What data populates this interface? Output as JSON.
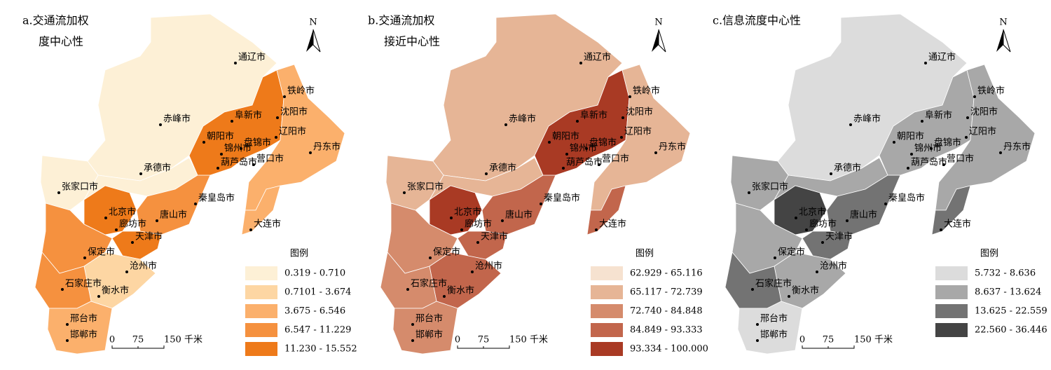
{
  "panels": [
    {
      "title_lines": [
        "a.交通流加权",
        "度中心性"
      ],
      "north": "N",
      "cities": [
        "通辽市",
        "铁岭市",
        "赤峰市",
        "阜新市",
        "沈阳市",
        "朝阳市",
        "辽阳市",
        "盘锦市",
        "锦州市",
        "丹东市",
        "营口市",
        "葫芦岛市",
        "承德市",
        "张家口市",
        "秦皇岛市",
        "北京市",
        "唐山市",
        "廊坊市",
        "大连市",
        "天津市",
        "保定市",
        "沧州市",
        "石家庄市",
        "衡水市",
        "邢台市",
        "邯郸市"
      ],
      "legend": {
        "title": "图例",
        "items": [
          {
            "label": "0.319 - 0.710",
            "color": "#fdf0d6"
          },
          {
            "label": "0.7101 - 3.674",
            "color": "#fdd6a3"
          },
          {
            "label": "3.675 - 6.546",
            "color": "#fbb06c"
          },
          {
            "label": "6.547 - 11.229",
            "color": "#f5913f"
          },
          {
            "label": "11.230 - 15.552",
            "color": "#ee7a1a"
          }
        ]
      },
      "scale": [
        "0",
        "75",
        "150 千米"
      ]
    },
    {
      "title_lines": [
        "b.交通流加权",
        "接近中心性"
      ],
      "north": "N",
      "cities": [
        "通辽市",
        "铁岭市",
        "赤峰市",
        "阜新市",
        "沈阳市",
        "朝阳市",
        "辽阳市",
        "盘锦市",
        "锦州市",
        "丹东市",
        "营口市",
        "葫芦岛市",
        "承德市",
        "张家口市",
        "秦皇岛市",
        "北京市",
        "唐山市",
        "廊坊市",
        "大连市",
        "天津市",
        "保定市",
        "沧州市",
        "石家庄市",
        "衡水市",
        "邢台市",
        "邯郸市"
      ],
      "legend": {
        "title": "图例",
        "items": [
          {
            "label": "62.929 - 65.116",
            "color": "#f6e2d0"
          },
          {
            "label": "65.117 - 72.739",
            "color": "#e6b596"
          },
          {
            "label": "72.740 - 84.848",
            "color": "#d58b6c"
          },
          {
            "label": "84.849 - 93.333",
            "color": "#c2664c"
          },
          {
            "label": "93.334 - 100.000",
            "color": "#a93a24"
          }
        ]
      },
      "scale": [
        "0",
        "75",
        "150 千米"
      ]
    },
    {
      "title_lines": [
        "c.信息流度中心性"
      ],
      "north": "N",
      "cities": [
        "通辽市",
        "铁岭市",
        "赤峰市",
        "阜新市",
        "沈阳市",
        "朝阳市",
        "辽阳市",
        "盘锦市",
        "锦州市",
        "丹东市",
        "营口市",
        "葫芦岛市",
        "承德市",
        "张家口市",
        "秦皇岛市",
        "北京市",
        "唐山市",
        "廊坊市",
        "大连市",
        "天津市",
        "保定市",
        "沧州市",
        "石家庄市",
        "衡水市",
        "邢台市",
        "邯郸市"
      ],
      "legend": {
        "title": "图例",
        "items": [
          {
            "label": "5.732 - 8.636",
            "color": "#dcdcdc"
          },
          {
            "label": "8.637 - 13.624",
            "color": "#a8a8a8"
          },
          {
            "label": "13.625 - 22.559",
            "color": "#737373"
          },
          {
            "label": "22.560 - 36.446",
            "color": "#444444"
          }
        ]
      },
      "scale": [
        "0",
        "75",
        "150 千米"
      ]
    }
  ]
}
